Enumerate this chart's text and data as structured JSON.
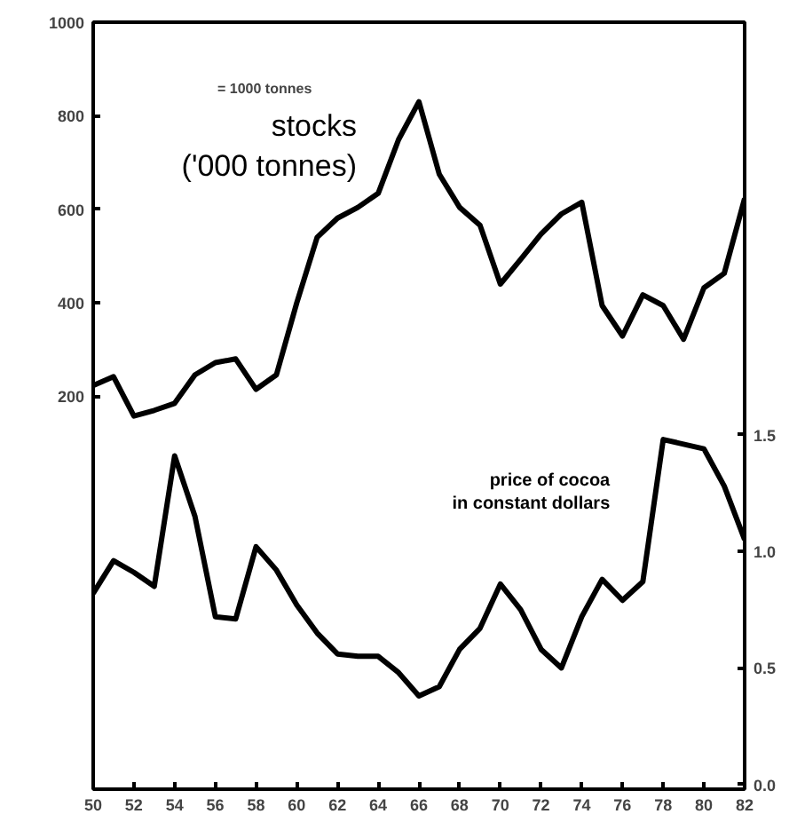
{
  "chart_data": {
    "type": "line",
    "x": [
      1950,
      1951,
      1952,
      1953,
      1954,
      1955,
      1956,
      1957,
      1958,
      1959,
      1960,
      1961,
      1962,
      1963,
      1964,
      1965,
      1966,
      1967,
      1968,
      1969,
      1970,
      1971,
      1972,
      1973,
      1974,
      1975,
      1976,
      1977,
      1978,
      1979,
      1980,
      1981,
      1982
    ],
    "series": [
      {
        "name": "stocks\n('000 tonnes)",
        "color": "#000000",
        "values": [
          223,
          242,
          158,
          170,
          185,
          246,
          272,
          280,
          215,
          246,
          400,
          540,
          581,
          604,
          634,
          749,
          830,
          675,
          604,
          566,
          440,
          493,
          547,
          590,
          615,
          394,
          329,
          417,
          394,
          322,
          432,
          463,
          623
        ]
      },
      {
        "name": "price of cocoa\nin constant dollars",
        "color": "#000000",
        "axis": "y2",
        "values": [
          0.82,
          0.96,
          0.91,
          0.85,
          1.41,
          1.15,
          0.72,
          0.71,
          1.02,
          0.92,
          0.77,
          0.65,
          0.56,
          0.55,
          0.55,
          0.48,
          0.38,
          0.42,
          0.58,
          0.67,
          0.86,
          0.75,
          0.58,
          0.5,
          0.72,
          0.88,
          0.79,
          0.87,
          1.48,
          1.46,
          1.44,
          1.28,
          1.05
        ]
      }
    ],
    "xlim": [
      1950,
      1982
    ],
    "xticks": [
      {
        "value": 1950,
        "label": "50"
      },
      {
        "value": 1952,
        "label": "52"
      },
      {
        "value": 1954,
        "label": "54"
      },
      {
        "value": 1956,
        "label": "56"
      },
      {
        "value": 1958,
        "label": "58"
      },
      {
        "value": 1960,
        "label": "60"
      },
      {
        "value": 1962,
        "label": "62"
      },
      {
        "value": 1964,
        "label": "64"
      },
      {
        "value": 1966,
        "label": "66"
      },
      {
        "value": 1968,
        "label": "68"
      },
      {
        "value": 1970,
        "label": "70"
      },
      {
        "value": 1972,
        "label": "72"
      },
      {
        "value": 1974,
        "label": "74"
      },
      {
        "value": 1976,
        "label": "76"
      },
      {
        "value": 1978,
        "label": "78"
      },
      {
        "value": 1980,
        "label": "80"
      },
      {
        "value": 1982,
        "label": "82"
      }
    ],
    "ylim": [
      -640,
      1000
    ],
    "yticks": [
      200,
      400,
      600,
      800,
      1000
    ],
    "y2lim": [
      -0.02,
      3.27
    ],
    "y2ticks": [
      {
        "value": 0.0,
        "label": "0.0"
      },
      {
        "value": 0.5,
        "label": "0.5"
      },
      {
        "value": 1.0,
        "label": "1.0"
      },
      {
        "value": 1.5,
        "label": "1.5"
      }
    ],
    "annotations": [
      "= 1000 tonnes"
    ],
    "grid": false,
    "legend": false,
    "marker": "none",
    "line_style": "solid"
  }
}
